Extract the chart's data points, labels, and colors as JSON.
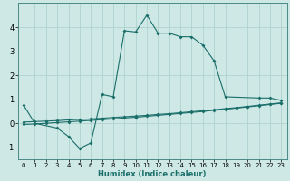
{
  "title": "",
  "xlabel": "Humidex (Indice chaleur)",
  "bg_color": "#cde8e5",
  "grid_color": "#aacfcc",
  "line_color": "#1a6e6a",
  "xlim": [
    -0.5,
    23.5
  ],
  "ylim": [
    -1.5,
    5.0
  ],
  "xticks": [
    0,
    1,
    2,
    3,
    4,
    5,
    6,
    7,
    8,
    9,
    10,
    11,
    12,
    13,
    14,
    15,
    16,
    17,
    18,
    19,
    20,
    21,
    22,
    23
  ],
  "yticks": [
    -1,
    0,
    1,
    2,
    3,
    4
  ],
  "curve1_x": [
    0,
    1,
    3,
    4,
    5,
    6,
    7,
    8,
    9,
    10,
    11,
    12,
    13,
    14,
    15,
    16,
    17,
    18,
    21,
    22,
    23
  ],
  "curve1_y": [
    0.75,
    0.0,
    -0.2,
    -0.55,
    -1.05,
    -0.82,
    1.2,
    1.1,
    3.85,
    3.8,
    4.5,
    3.75,
    3.75,
    3.6,
    3.6,
    3.25,
    2.6,
    1.1,
    1.05,
    1.05,
    0.95
  ],
  "line2_x": [
    0,
    1,
    2,
    3,
    4,
    5,
    6,
    7,
    8,
    9,
    10,
    11,
    12,
    13,
    14,
    15,
    16,
    17,
    18,
    19,
    20,
    21,
    22,
    23
  ],
  "line2_y": [
    0.05,
    0.07,
    0.09,
    0.11,
    0.14,
    0.16,
    0.18,
    0.21,
    0.24,
    0.27,
    0.3,
    0.33,
    0.37,
    0.4,
    0.44,
    0.48,
    0.52,
    0.56,
    0.61,
    0.65,
    0.7,
    0.75,
    0.8,
    0.85
  ],
  "line3_x": [
    0,
    1,
    2,
    3,
    4,
    5,
    6,
    7,
    8,
    9,
    10,
    11,
    12,
    13,
    14,
    15,
    16,
    17,
    18,
    19,
    20,
    21,
    22,
    23
  ],
  "line3_y": [
    -0.05,
    -0.03,
    0.0,
    0.03,
    0.06,
    0.09,
    0.12,
    0.15,
    0.18,
    0.22,
    0.25,
    0.29,
    0.33,
    0.37,
    0.41,
    0.45,
    0.49,
    0.54,
    0.58,
    0.63,
    0.68,
    0.73,
    0.78,
    0.83
  ]
}
